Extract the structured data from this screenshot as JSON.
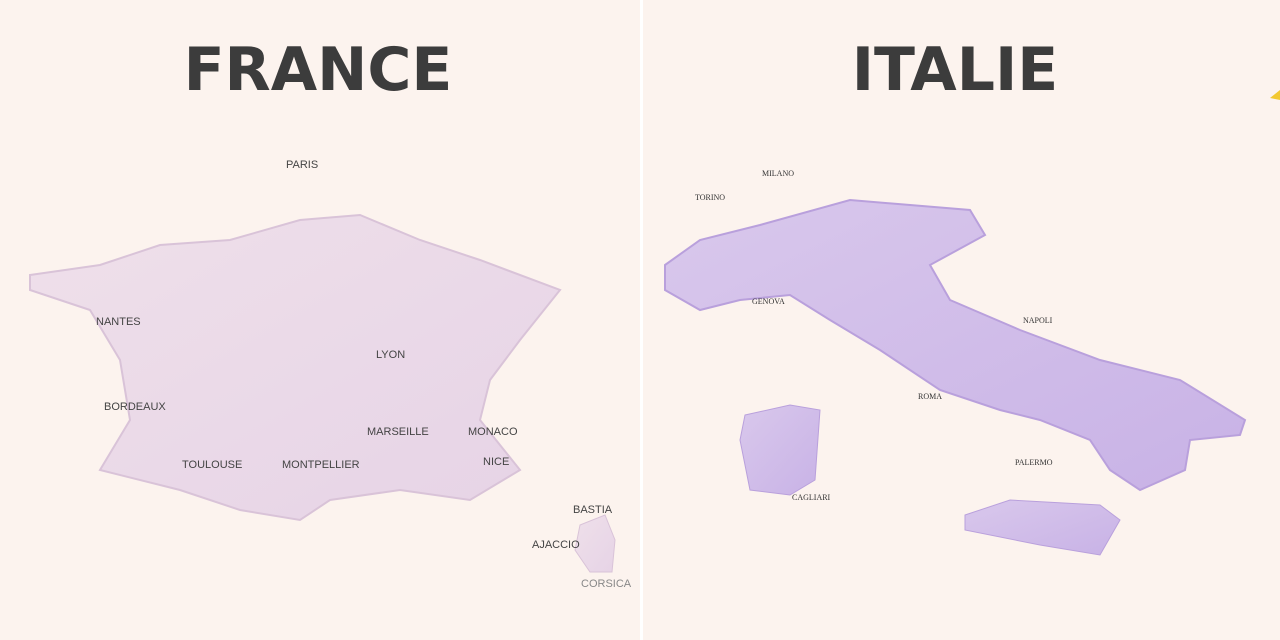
{
  "panels": [
    {
      "title": "FRANCE",
      "labels": [
        "PARIS",
        "NANTES",
        "LYON",
        "BORDEAUX",
        "MARSEILLE",
        "MONACO",
        "TOULOUSE",
        "MONTPELLIER",
        "NICE",
        "BASTIA",
        "AJACCIO",
        "CORSICA"
      ]
    },
    {
      "title": "ITALIE",
      "labels": [
        "TORINO",
        "MILANO",
        "GENOVA",
        "NAPOLI",
        "ROMA",
        "PALERMO",
        "CAGLIARI"
      ]
    }
  ]
}
